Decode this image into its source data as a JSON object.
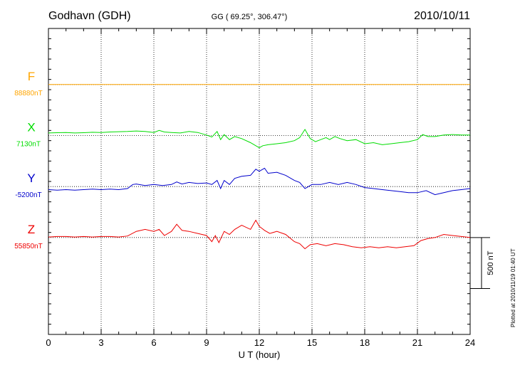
{
  "header": {
    "station": "Godhavn (GDH)",
    "coords": "GG ( 69.25°, 306.47°)",
    "date": "2010/10/11"
  },
  "side_note": "Plotted at 2010/11/19 01:40 UT",
  "chart_data": {
    "type": "line",
    "xlabel": "U T (hour)",
    "xlim": [
      0,
      24
    ],
    "x_ticks": [
      0,
      3,
      6,
      9,
      12,
      15,
      18,
      21,
      24
    ],
    "x_tick_labels": [
      "0",
      "3",
      "6",
      "9",
      "12",
      "15",
      "18",
      "21",
      "24"
    ],
    "y_range_nT": [
      -1350,
      1650
    ],
    "scale_bar": {
      "label": "500 nT",
      "value": 500
    },
    "grid": true,
    "series": [
      {
        "name": "F",
        "baseline_label": "88880nT",
        "color": "#ffa500",
        "offset_nT": 1100,
        "points": [
          [
            0,
            0
          ],
          [
            24,
            0
          ]
        ]
      },
      {
        "name": "X",
        "baseline_label": "7130nT",
        "color": "#00dd00",
        "offset_nT": 600,
        "points": [
          [
            0,
            25
          ],
          [
            0.5,
            28
          ],
          [
            1,
            30
          ],
          [
            1.5,
            25
          ],
          [
            2,
            28
          ],
          [
            2.5,
            32
          ],
          [
            3,
            30
          ],
          [
            3.5,
            35
          ],
          [
            4,
            38
          ],
          [
            4.5,
            40
          ],
          [
            5,
            45
          ],
          [
            5.5,
            40
          ],
          [
            6,
            30
          ],
          [
            6.3,
            50
          ],
          [
            6.6,
            35
          ],
          [
            7,
            30
          ],
          [
            7.5,
            25
          ],
          [
            8,
            40
          ],
          [
            8.5,
            30
          ],
          [
            9,
            5
          ],
          [
            9.3,
            -15
          ],
          [
            9.6,
            40
          ],
          [
            9.8,
            -40
          ],
          [
            10,
            10
          ],
          [
            10.3,
            -40
          ],
          [
            10.6,
            -10
          ],
          [
            11,
            -30
          ],
          [
            11.5,
            -70
          ],
          [
            12,
            -120
          ],
          [
            12.2,
            -100
          ],
          [
            12.5,
            -90
          ],
          [
            13,
            -80
          ],
          [
            13.5,
            -70
          ],
          [
            14,
            -50
          ],
          [
            14.3,
            -20
          ],
          [
            14.6,
            60
          ],
          [
            14.9,
            -30
          ],
          [
            15.2,
            -60
          ],
          [
            15.5,
            -40
          ],
          [
            15.8,
            -20
          ],
          [
            16,
            -40
          ],
          [
            16.3,
            -10
          ],
          [
            16.6,
            -30
          ],
          [
            17,
            -50
          ],
          [
            17.5,
            -40
          ],
          [
            18,
            -80
          ],
          [
            18.5,
            -70
          ],
          [
            19,
            -90
          ],
          [
            19.5,
            -80
          ],
          [
            20,
            -70
          ],
          [
            20.5,
            -60
          ],
          [
            21,
            -40
          ],
          [
            21.3,
            10
          ],
          [
            21.6,
            -10
          ],
          [
            22,
            -10
          ],
          [
            22.5,
            5
          ],
          [
            23,
            10
          ],
          [
            23.5,
            5
          ],
          [
            24,
            5
          ]
        ]
      },
      {
        "name": "Y",
        "baseline_label": "-5200nT",
        "color": "#0000cc",
        "offset_nT": 100,
        "points": [
          [
            0,
            -30
          ],
          [
            0.5,
            -35
          ],
          [
            1,
            -30
          ],
          [
            1.5,
            -35
          ],
          [
            2,
            -30
          ],
          [
            2.5,
            -25
          ],
          [
            3,
            -30
          ],
          [
            3.5,
            -25
          ],
          [
            4,
            -30
          ],
          [
            4.5,
            -20
          ],
          [
            4.8,
            20
          ],
          [
            5,
            25
          ],
          [
            5.5,
            10
          ],
          [
            6,
            20
          ],
          [
            6.5,
            10
          ],
          [
            7,
            20
          ],
          [
            7.3,
            45
          ],
          [
            7.6,
            25
          ],
          [
            8,
            40
          ],
          [
            8.5,
            30
          ],
          [
            9,
            35
          ],
          [
            9.3,
            20
          ],
          [
            9.6,
            60
          ],
          [
            9.8,
            -20
          ],
          [
            10,
            60
          ],
          [
            10.3,
            20
          ],
          [
            10.6,
            80
          ],
          [
            11,
            100
          ],
          [
            11.5,
            110
          ],
          [
            11.8,
            170
          ],
          [
            12,
            150
          ],
          [
            12.3,
            180
          ],
          [
            12.5,
            130
          ],
          [
            13,
            140
          ],
          [
            13.5,
            110
          ],
          [
            14,
            60
          ],
          [
            14.3,
            40
          ],
          [
            14.6,
            -20
          ],
          [
            15,
            20
          ],
          [
            15.5,
            20
          ],
          [
            16,
            40
          ],
          [
            16.5,
            20
          ],
          [
            17,
            40
          ],
          [
            17.5,
            20
          ],
          [
            18,
            -10
          ],
          [
            18.5,
            -20
          ],
          [
            19,
            -30
          ],
          [
            19.5,
            -40
          ],
          [
            20,
            -50
          ],
          [
            20.5,
            -60
          ],
          [
            21,
            -60
          ],
          [
            21.5,
            -40
          ],
          [
            22,
            -80
          ],
          [
            22.5,
            -60
          ],
          [
            23,
            -40
          ],
          [
            23.5,
            -30
          ],
          [
            24,
            -20
          ]
        ]
      },
      {
        "name": "Z",
        "baseline_label": "55850nT",
        "color": "#ee0000",
        "offset_nT": -400,
        "points": [
          [
            0,
            5
          ],
          [
            0.5,
            10
          ],
          [
            1,
            10
          ],
          [
            1.5,
            5
          ],
          [
            2,
            10
          ],
          [
            2.5,
            5
          ],
          [
            3,
            10
          ],
          [
            3.5,
            10
          ],
          [
            4,
            5
          ],
          [
            4.5,
            15
          ],
          [
            5,
            60
          ],
          [
            5.5,
            80
          ],
          [
            6,
            60
          ],
          [
            6.3,
            80
          ],
          [
            6.6,
            20
          ],
          [
            7,
            60
          ],
          [
            7.3,
            130
          ],
          [
            7.6,
            70
          ],
          [
            8,
            60
          ],
          [
            8.5,
            40
          ],
          [
            9,
            20
          ],
          [
            9.3,
            -40
          ],
          [
            9.5,
            20
          ],
          [
            9.7,
            -50
          ],
          [
            10,
            60
          ],
          [
            10.3,
            30
          ],
          [
            10.6,
            80
          ],
          [
            11,
            120
          ],
          [
            11.5,
            80
          ],
          [
            11.8,
            170
          ],
          [
            12,
            110
          ],
          [
            12.3,
            70
          ],
          [
            12.6,
            40
          ],
          [
            13,
            60
          ],
          [
            13.5,
            30
          ],
          [
            14,
            -40
          ],
          [
            14.3,
            -60
          ],
          [
            14.6,
            -110
          ],
          [
            14.9,
            -70
          ],
          [
            15.3,
            -60
          ],
          [
            15.8,
            -80
          ],
          [
            16.3,
            -60
          ],
          [
            16.8,
            -70
          ],
          [
            17.3,
            -90
          ],
          [
            17.8,
            -100
          ],
          [
            18.3,
            -90
          ],
          [
            18.8,
            -100
          ],
          [
            19.3,
            -90
          ],
          [
            19.8,
            -100
          ],
          [
            20.3,
            -90
          ],
          [
            20.8,
            -80
          ],
          [
            21.2,
            -30
          ],
          [
            21.6,
            -10
          ],
          [
            22,
            0
          ],
          [
            22.5,
            30
          ],
          [
            23,
            20
          ],
          [
            23.5,
            10
          ],
          [
            24,
            0
          ]
        ]
      }
    ]
  }
}
